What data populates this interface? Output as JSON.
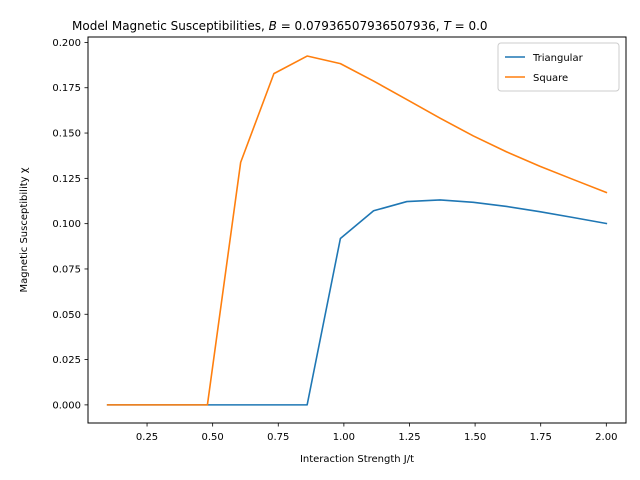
{
  "chart_data": {
    "type": "line",
    "title": "Model Magnetic Susceptibilities, B = 0.07936507936507936, T = 0.0",
    "title_parts": {
      "prefix": "Model Magnetic Susceptibilities, ",
      "b_var": "B",
      "b_value": " = 0.07936507936507936, ",
      "t_var": "T",
      "t_value": " = 0.0"
    },
    "xlabel": "Interaction Strength J/t",
    "ylabel": "Magnetic Susceptibility χ",
    "xlim": [
      0.025,
      2.075
    ],
    "ylim": [
      -0.01,
      0.203
    ],
    "xticks": [
      0.25,
      0.5,
      0.75,
      1.0,
      1.25,
      1.5,
      1.75,
      2.0
    ],
    "xtick_labels": [
      "0.25",
      "0.50",
      "0.75",
      "1.00",
      "1.25",
      "1.50",
      "1.75",
      "2.00"
    ],
    "yticks": [
      0.0,
      0.025,
      0.05,
      0.075,
      0.1,
      0.125,
      0.15,
      0.175,
      0.2
    ],
    "ytick_labels": [
      "0.000",
      "0.025",
      "0.050",
      "0.075",
      "0.100",
      "0.125",
      "0.150",
      "0.175",
      "0.200"
    ],
    "grid": false,
    "legend_position": "upper right",
    "x": [
      0.1,
      0.2267,
      0.3533,
      0.48,
      0.6067,
      0.7333,
      0.86,
      0.9867,
      1.1133,
      1.24,
      1.3667,
      1.4933,
      1.62,
      1.7467,
      1.8733,
      2.0
    ],
    "series": [
      {
        "name": "Triangular",
        "color": "#1f77b4",
        "values": [
          0.0,
          0.0,
          0.0,
          0.0,
          0.0,
          0.0,
          0.0,
          0.0918,
          0.1071,
          0.1122,
          0.1131,
          0.1118,
          0.1095,
          0.1066,
          0.1034,
          0.1001
        ]
      },
      {
        "name": "Square",
        "color": "#ff7f0e",
        "values": [
          0.0,
          0.0,
          0.0,
          0.0,
          0.1338,
          0.1828,
          0.1925,
          0.1883,
          0.1787,
          0.1685,
          0.1582,
          0.1484,
          0.1396,
          0.1317,
          0.1244,
          0.1172
        ]
      }
    ]
  }
}
